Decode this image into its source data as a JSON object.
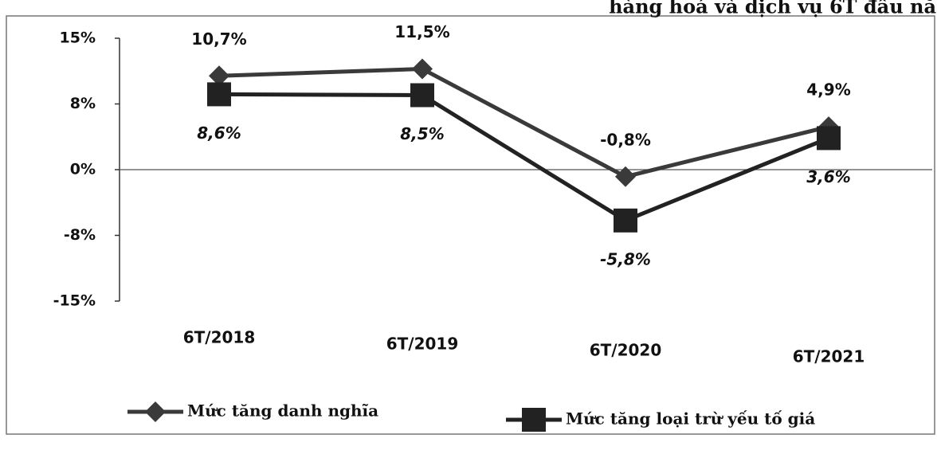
{
  "chart_data": {
    "type": "line",
    "title": "hàng hoá và dịch vụ 6T đầu nă",
    "categories": [
      "6T/2018",
      "6T/2019",
      "6T/2020",
      "6T/2021"
    ],
    "series": [
      {
        "name": "Mức tăng danh nghĩa",
        "color": "#3a3a3a",
        "marker": "diamond",
        "values": [
          10.7,
          11.5,
          -0.8,
          4.9
        ],
        "value_labels": [
          "10,7%",
          "11,5%",
          "-0,8%",
          "4,9%"
        ]
      },
      {
        "name": "Mức tăng loại trừ yếu tố giá",
        "color": "#222222",
        "marker": "square",
        "values": [
          8.6,
          8.5,
          -5.8,
          3.6
        ],
        "value_labels": [
          "8,6%",
          "8,5%",
          "-5,8%",
          "3,6%"
        ]
      }
    ],
    "ylim": [
      -15,
      15
    ],
    "yticks": [
      {
        "value": 15,
        "label": "15%"
      },
      {
        "value": 7.5,
        "label": "8%"
      },
      {
        "value": 0,
        "label": "0%"
      },
      {
        "value": -7.5,
        "label": "-8%"
      },
      {
        "value": -15,
        "label": "-15%"
      }
    ],
    "legend": "bottom"
  }
}
